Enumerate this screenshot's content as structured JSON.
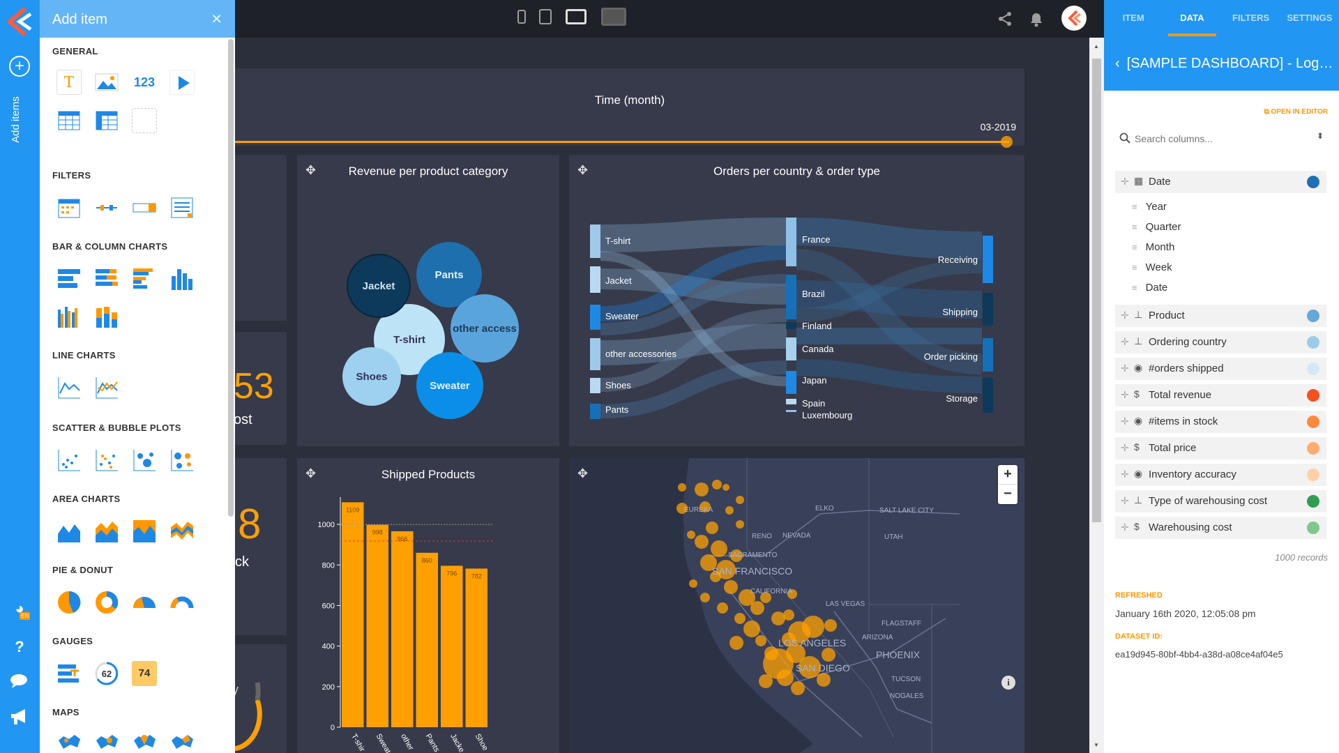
{
  "left_rail": {
    "add_items_label": "Add items",
    "lang_badge": "EN"
  },
  "add_panel": {
    "title": "Add item",
    "sections": [
      "GENERAL",
      "FILTERS",
      "BAR & COLUMN CHARTS",
      "LINE CHARTS",
      "SCATTER & BUBBLE PLOTS",
      "AREA CHARTS",
      "PIE & DONUT",
      "GAUGES",
      "MAPS"
    ],
    "gauge_numbers": [
      "62",
      "74"
    ],
    "number_icon_text": "123"
  },
  "time_filter": {
    "title": "Time (month)",
    "value": "03-2019"
  },
  "revenue_card": {
    "title": "Revenue per product category",
    "bubbles": [
      "Jacket",
      "Pants",
      "T-shirt",
      "other access",
      "Shoes",
      "Sweater"
    ]
  },
  "sankey_card": {
    "title": "Orders per country & order type",
    "left_nodes": [
      "T-shirt",
      "Jacket",
      "Sweater",
      "other accessories",
      "Shoes",
      "Pants"
    ],
    "middle_nodes": [
      "France",
      "Brazil",
      "Finland",
      "Canada",
      "Japan",
      "Spain",
      "Luxembourg"
    ],
    "right_nodes": [
      "Receiving",
      "Shipping",
      "Order picking",
      "Storage"
    ]
  },
  "kpi_fragments": {
    "kpi1_value": "53",
    "kpi1_label": "ost",
    "kpi2_value": "8",
    "kpi2_label": "ck",
    "kpi3_label": "y"
  },
  "shipped_card": {
    "title": "Shipped Products"
  },
  "chart_data": {
    "type": "bar",
    "title": "Shipped Products",
    "categories": [
      "T-shirt",
      "Sweater",
      "other accessories",
      "Pants",
      "Jacket",
      "Shoes"
    ],
    "category_labels": [
      "T-shir",
      "Sweat",
      "other",
      "Pants",
      "Jacke",
      "Shoe"
    ],
    "values": [
      1109,
      998,
      966,
      860,
      796,
      782
    ],
    "ylim": [
      0,
      1100
    ],
    "yticks": [
      "0",
      "200",
      "400",
      "600",
      "800",
      "1000"
    ],
    "reference_lines": [
      1000,
      918
    ],
    "color": "#ffa000"
  },
  "map_card": {
    "labels": [
      "EUREKA",
      "ELKO",
      "SALT LAKE CITY",
      "RENO",
      "NEVADA",
      "UTAH",
      "SACRAMENTO",
      "SAN FRANCISCO",
      "CALIFORNIA",
      "LAS VEGAS",
      "FLAGSTAFF",
      "ARIZONA",
      "LOS ANGELES",
      "PHOENIX",
      "SAN DIEGO",
      "TUCSON",
      "NOGALES"
    ],
    "zoom_in": "+",
    "zoom_out": "−",
    "info": "i"
  },
  "data_panel": {
    "tabs": [
      "ITEM",
      "DATA",
      "FILTERS",
      "SETTINGS"
    ],
    "dataset_title": "[SAMPLE DASHBOARD] - Log…",
    "open_in_editor": "OPEN IN EDITOR",
    "search_placeholder": "Search columns...",
    "date_column": "Date",
    "date_levels": [
      "Year",
      "Quarter",
      "Month",
      "Week",
      "Date"
    ],
    "columns": [
      {
        "label": "Product",
        "icon": "hierarchy-icon",
        "color": "#64a8dc"
      },
      {
        "label": "Ordering country",
        "icon": "hierarchy-icon",
        "color": "#9ccbea"
      },
      {
        "label": "#orders shipped",
        "icon": "measure-icon",
        "color": "#d4e8f7"
      },
      {
        "label": "Total revenue",
        "icon": "dollar-icon",
        "color": "#f4511e"
      },
      {
        "label": "#items in stock",
        "icon": "measure-icon",
        "color": "#ff8a3d"
      },
      {
        "label": "Total price",
        "icon": "dollar-icon",
        "color": "#ffac70"
      },
      {
        "label": "Inventory accuracy",
        "icon": "measure-icon",
        "color": "#ffd0a8"
      },
      {
        "label": "Type of warehousing cost",
        "icon": "hierarchy-icon",
        "color": "#2e9e4f"
      },
      {
        "label": "Warehousing cost",
        "icon": "dollar-icon",
        "color": "#7cc98a"
      }
    ],
    "records": "1000 records",
    "refreshed_label": "REFRESHED",
    "refreshed_value": "January 16th 2020, 12:05:08 pm",
    "dataset_id_label": "DATASET ID:",
    "dataset_id_value": "ea19d945-80bf-4bb4-a38d-a08ce4af04e5"
  }
}
